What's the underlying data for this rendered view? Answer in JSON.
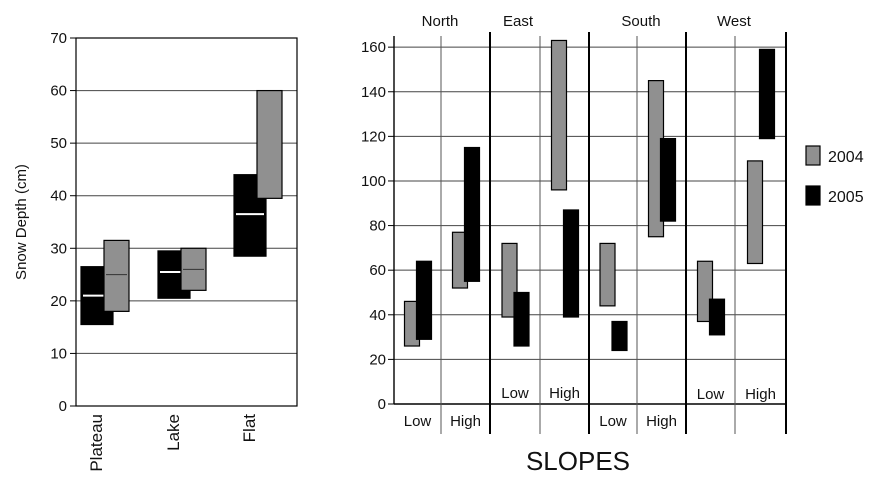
{
  "chart_data": [
    {
      "type": "bar",
      "subtype": "floating-range",
      "ylabel": "Snow Depth (cm)",
      "ylim": [
        0,
        70
      ],
      "yticks": [
        0,
        10,
        20,
        30,
        40,
        50,
        60,
        70
      ],
      "grid": true,
      "categories": [
        "Plateau",
        "Lake",
        "Flat"
      ],
      "series": [
        {
          "name": "2005",
          "color": "#000000",
          "low": [
            15.5,
            20.5,
            28.5
          ],
          "high": [
            26.5,
            29.5,
            44
          ],
          "median": [
            21,
            25.5,
            36.5
          ]
        },
        {
          "name": "2004",
          "color": "#909090",
          "low": [
            18,
            22,
            39.5
          ],
          "high": [
            31.5,
            30,
            60
          ],
          "median": [
            25,
            26,
            null
          ]
        }
      ]
    },
    {
      "type": "bar",
      "subtype": "floating-range",
      "xlabel": "SLOPES",
      "ylim": [
        0,
        165
      ],
      "yticks": [
        0,
        20,
        40,
        60,
        80,
        100,
        120,
        140,
        160
      ],
      "grid": true,
      "groups": [
        "North",
        "East",
        "South",
        "West"
      ],
      "subcategories": [
        "Low",
        "High"
      ],
      "series": [
        {
          "name": "2004",
          "color": "#909090",
          "low": [
            26,
            52,
            39,
            96,
            44,
            75,
            37,
            63
          ],
          "high": [
            46,
            77,
            72,
            163,
            72,
            145,
            64,
            109
          ]
        },
        {
          "name": "2005",
          "color": "#000000",
          "low": [
            29,
            55,
            26,
            39,
            24,
            82,
            31,
            119
          ],
          "high": [
            64,
            115,
            50,
            87,
            37,
            119,
            47,
            159
          ]
        }
      ],
      "legend": {
        "position": "right",
        "entries": [
          "2004",
          "2005"
        ]
      }
    }
  ]
}
